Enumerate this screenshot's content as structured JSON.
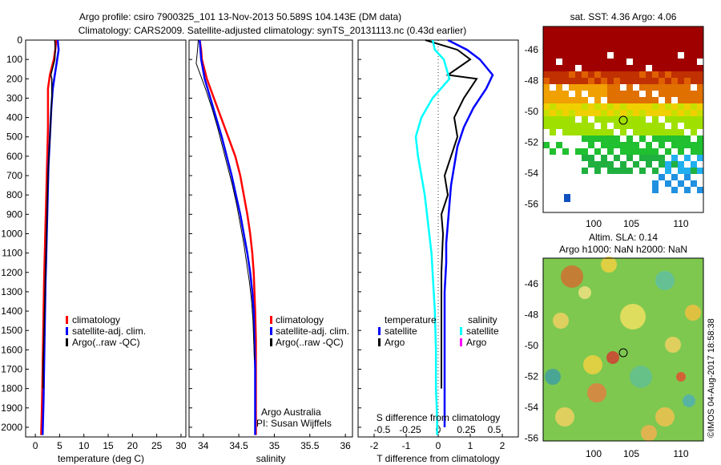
{
  "header": {
    "line1": "Argo profile: csiro 7900325_101 13-Nov-2013 50.589S 104.143E (DM data)",
    "line2": "Climatology: CARS2009. Satellite-adjusted climatology: synTS_20131113.nc (0.43d earlier)"
  },
  "colors": {
    "climatology": "#ff0000",
    "satellite": "#0000ff",
    "argo": "#000000",
    "temp_satellite": "#0000ff",
    "sal_satellite": "#00ffff",
    "sal_argo": "#ff00ff"
  },
  "panels": {
    "temperature": {
      "xlabel": "temperature (deg C)",
      "xticks": [
        "0",
        "5",
        "10",
        "15",
        "20",
        "25",
        "30"
      ],
      "legend": [
        "climatology",
        "satellite-adj. clim.",
        "Argo(..raw -QC)"
      ]
    },
    "salinity": {
      "xlabel": "salinity",
      "xticks": [
        "34",
        "34.5",
        "35",
        "35.5",
        "36"
      ],
      "legend": [
        "climatology",
        "satellite-adj. clim.",
        "Argo(..raw -QC)"
      ],
      "credit1": "Argo Australia",
      "credit2": "PI: Susan Wijffels"
    },
    "difference": {
      "xlabel_bottom": "T difference from climatology",
      "xlabel_top": "S difference from climatology",
      "xticks_bottom": [
        "-2",
        "-1",
        "0",
        "1",
        "2"
      ],
      "xticks_top": [
        "-0.5",
        "-0.25",
        "0",
        "0.25",
        "0.5"
      ],
      "legend_temp_title": "temperature",
      "legend_sal_title": "salinity",
      "legend_temp": [
        "satellite",
        "Argo"
      ],
      "legend_sal": [
        "satellite",
        "Argo"
      ]
    },
    "depth_ticks": [
      "0",
      "100",
      "200",
      "300",
      "400",
      "500",
      "600",
      "700",
      "800",
      "900",
      "1000",
      "1100",
      "1200",
      "1300",
      "1400",
      "1500",
      "1600",
      "1700",
      "1800",
      "1900",
      "2000"
    ]
  },
  "maps": {
    "sst_title": "sat. SST: 4.36 Argo: 4.06",
    "sla_title1": "Altim. SLA: 0.14",
    "sla_title2": "Argo h1000: NaN h2000: NaN",
    "lat_ticks_top": [
      "-46",
      "-48",
      "-50",
      "-52",
      "-54",
      "-56"
    ],
    "lat_ticks_bottom": [
      "-46",
      "-48",
      "-50",
      "-52",
      "-54",
      "-56"
    ],
    "lon_ticks": [
      "100",
      "105",
      "110"
    ],
    "watermark": "©IMOS 04-Aug-2017 18:58:38"
  },
  "chart_data": [
    {
      "type": "line",
      "title": "temperature",
      "xlabel": "temperature (deg C)",
      "ylabel": "",
      "xlim": [
        -2,
        31
      ],
      "ylim": [
        2050,
        0
      ],
      "series": [
        {
          "name": "climatology",
          "x": [
            4.3,
            4.1,
            3.8,
            3.0,
            2.6,
            2.6,
            2.6,
            2.5,
            2.4,
            2.3,
            2.2,
            2.1,
            2.0,
            1.9,
            1.8,
            1.7,
            1.6,
            1.5,
            1.4,
            1.3,
            1.2
          ],
          "y": [
            0,
            50,
            100,
            180,
            250,
            350,
            450,
            550,
            650,
            750,
            850,
            950,
            1050,
            1150,
            1250,
            1400,
            1550,
            1700,
            1850,
            1950,
            2040
          ]
        },
        {
          "name": "satellite-adj. clim.",
          "x": [
            4.6,
            4.8,
            4.5,
            4.0,
            3.6,
            3.3,
            3.1,
            2.9,
            2.7,
            2.6,
            2.5,
            2.4,
            2.3,
            2.2,
            2.1,
            2.0,
            1.9,
            1.8,
            1.7,
            1.6,
            1.5
          ],
          "y": [
            0,
            50,
            100,
            180,
            250,
            350,
            450,
            550,
            650,
            750,
            850,
            950,
            1050,
            1150,
            1250,
            1400,
            1550,
            1700,
            1850,
            1950,
            2040
          ]
        },
        {
          "name": "Argo(..raw -QC)",
          "x": [
            4.0,
            4.1,
            4.0,
            3.2,
            3.4,
            3.4,
            3.2,
            3.0,
            2.8,
            2.6,
            2.5,
            2.4,
            2.3,
            2.2,
            2.1,
            2.0,
            1.9,
            1.8,
            1.7,
            1.6,
            1.6
          ],
          "y": [
            0,
            50,
            100,
            180,
            200,
            300,
            400,
            500,
            600,
            700,
            800,
            900,
            1000,
            1100,
            1200,
            1300,
            1400,
            1500,
            1600,
            1700,
            1800
          ]
        }
      ]
    },
    {
      "type": "line",
      "title": "salinity",
      "xlabel": "salinity",
      "ylabel": "",
      "xlim": [
        33.8,
        36.1
      ],
      "ylim": [
        2050,
        0
      ],
      "series": [
        {
          "name": "climatology",
          "x": [
            33.95,
            33.97,
            33.98,
            34.05,
            34.15,
            34.25,
            34.35,
            34.45,
            34.52,
            34.57,
            34.62,
            34.66,
            34.69,
            34.71,
            34.72,
            34.73,
            34.74,
            34.74,
            34.74,
            34.74,
            34.74
          ],
          "y": [
            0,
            50,
            100,
            200,
            300,
            400,
            500,
            600,
            700,
            800,
            900,
            1000,
            1100,
            1200,
            1300,
            1400,
            1550,
            1700,
            1850,
            1950,
            2040
          ]
        },
        {
          "name": "satellite-adj. clim.",
          "x": [
            33.95,
            33.96,
            33.97,
            34.02,
            34.1,
            34.18,
            34.26,
            34.33,
            34.4,
            34.46,
            34.52,
            34.57,
            34.62,
            34.66,
            34.69,
            34.71,
            34.72,
            34.73,
            34.73,
            34.73,
            34.73
          ],
          "y": [
            0,
            50,
            100,
            200,
            300,
            400,
            500,
            600,
            700,
            800,
            900,
            1000,
            1100,
            1200,
            1300,
            1400,
            1550,
            1700,
            1850,
            1950,
            2040
          ]
        },
        {
          "name": "Argo(..raw -QC)",
          "x": [
            33.93,
            33.92,
            33.9,
            34.03,
            34.12,
            34.2,
            34.27,
            34.34,
            34.41,
            34.47,
            34.52,
            34.57,
            34.61,
            34.65,
            34.68,
            34.7,
            34.71,
            34.72
          ],
          "y": [
            0,
            50,
            120,
            250,
            350,
            450,
            550,
            650,
            750,
            850,
            950,
            1050,
            1150,
            1250,
            1350,
            1450,
            1550,
            1650
          ]
        }
      ]
    },
    {
      "type": "line",
      "title": "difference from climatology",
      "xlabel": "T difference from climatology",
      "ylabel": "",
      "xlim": [
        -2.5,
        2.5
      ],
      "ylim": [
        2050,
        0
      ],
      "series": [
        {
          "name": "temperature satellite",
          "x": [
            0.3,
            0.9,
            1.3,
            1.7,
            1.5,
            1.1,
            0.8,
            0.6,
            0.5,
            0.4,
            0.35,
            0.3,
            0.25,
            0.25,
            0.2,
            0.2,
            0.2,
            0.2,
            0.2
          ],
          "y": [
            0,
            50,
            100,
            180,
            250,
            350,
            450,
            550,
            650,
            750,
            850,
            950,
            1050,
            1150,
            1300,
            1500,
            1700,
            1900,
            2000
          ]
        },
        {
          "name": "temperature Argo",
          "x": [
            -0.4,
            0.6,
            1.0,
            0.3,
            1.2,
            0.8,
            0.5,
            0.6,
            0.4,
            0.2,
            0.3,
            0.1,
            0.15,
            0.1,
            0.1,
            0.1,
            0.1
          ],
          "y": [
            0,
            50,
            100,
            180,
            200,
            300,
            400,
            500,
            600,
            700,
            800,
            900,
            1000,
            1200,
            1400,
            1600,
            1800
          ]
        },
        {
          "name": "salinity satellite",
          "x": [
            -0.05,
            -0.03,
            0.05,
            0.1,
            -0.05,
            -0.15,
            -0.2,
            -0.18,
            -0.15,
            -0.12,
            -0.1,
            -0.08,
            -0.06,
            -0.05,
            -0.03,
            -0.02,
            -0.02,
            -0.01,
            -0.01
          ],
          "y": [
            0,
            50,
            100,
            200,
            300,
            400,
            500,
            600,
            700,
            800,
            900,
            1000,
            1100,
            1200,
            1400,
            1600,
            1800,
            1950,
            2040
          ]
        }
      ]
    }
  ]
}
